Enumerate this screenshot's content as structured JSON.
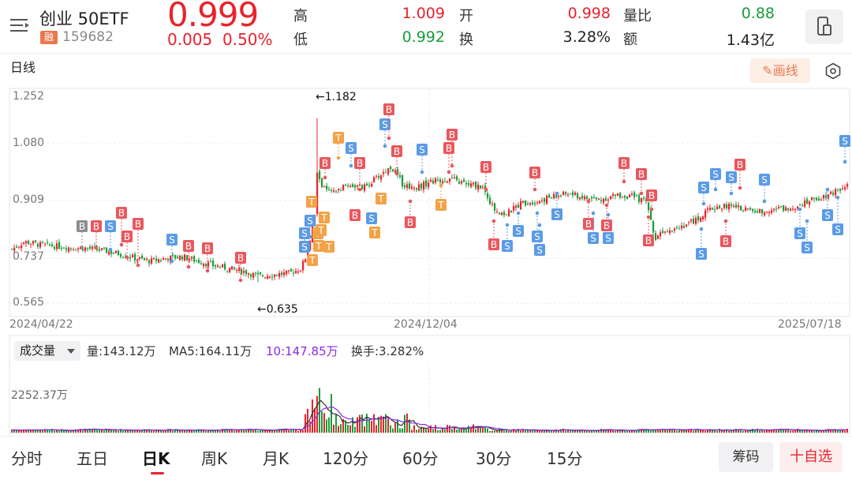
{
  "header": {
    "name": "创业 50ETF",
    "badge": "融",
    "code": "159682",
    "price": "0.999",
    "change": "0.005",
    "change_pct": "0.50%",
    "quotes": [
      {
        "label": "高",
        "value": "1.009",
        "color": "red"
      },
      {
        "label": "开",
        "value": "0.998",
        "color": "red"
      },
      {
        "label": "量比",
        "value": "0.88",
        "color": "green"
      },
      {
        "label": "低",
        "value": "0.992",
        "color": "green"
      },
      {
        "label": "换",
        "value": "3.28%",
        "color": "dark"
      },
      {
        "label": "额",
        "value": "1.43亿",
        "color": "dark"
      }
    ]
  },
  "toolbar": {
    "period_label": "日线",
    "draw_label": "画线"
  },
  "chart_data": {
    "type": "candlestick",
    "y_axis": [
      "1.252",
      "1.080",
      "0.909",
      "0.737",
      "0.565"
    ],
    "x_axis": [
      "2024/04/22",
      "2024/12/04",
      "2025/07/18"
    ],
    "annotations": {
      "high": "←1.182",
      "low": "←0.635"
    },
    "colors": {
      "up": "#e8232c",
      "down": "#1a9c3a",
      "buy": "#e8585e",
      "sell": "#5b9be6",
      "t": "#f3a247",
      "b_gray": "#8d8d8d",
      "ma_black": "#333333",
      "ma_purple": "#8a2be2"
    }
  },
  "volume": {
    "selector": "成交量",
    "vol": "量:143.12万",
    "ma5": "MA5:164.11万",
    "ma10": "10:147.85万",
    "turnover": "换手:3.282%",
    "max": "2252.37万"
  },
  "tabs": [
    "分时",
    "五日",
    "日K",
    "周K",
    "月K",
    "120分",
    "60分",
    "30分",
    "15分"
  ],
  "active_tab": "日K",
  "buttons": {
    "chip": "筹码",
    "add_watch": "十自选"
  }
}
